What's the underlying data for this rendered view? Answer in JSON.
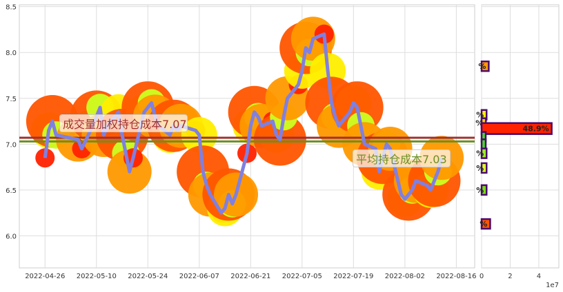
{
  "chart_data": [
    {
      "type": "line",
      "x_ticks": [
        "2022-04-26",
        "2022-05-10",
        "2022-05-24",
        "2022-06-07",
        "2022-06-21",
        "2022-07-05",
        "2022-07-19",
        "2022-08-02",
        "2022-08-16"
      ],
      "y_ticks": [
        "6.0",
        "6.5",
        "7.0",
        "7.5",
        "8.0",
        "8.5"
      ],
      "xlim": [
        "2022-04-19",
        "2022-08-21"
      ],
      "ylim": [
        5.65,
        8.52
      ],
      "grid": true,
      "line_color": "#8080e0",
      "series": [
        {
          "x": [
            "2022-04-26",
            "2022-04-27",
            "2022-04-28",
            "2022-04-29",
            "2022-05-05",
            "2022-05-06",
            "2022-05-09",
            "2022-05-10",
            "2022-05-11",
            "2022-05-12",
            "2022-05-13",
            "2022-05-16",
            "2022-05-17",
            "2022-05-18",
            "2022-05-19",
            "2022-05-20",
            "2022-05-23",
            "2022-05-24",
            "2022-05-25",
            "2022-05-26",
            "2022-05-27",
            "2022-05-30",
            "2022-05-31",
            "2022-06-01",
            "2022-06-02",
            "2022-06-06",
            "2022-06-07",
            "2022-06-08",
            "2022-06-09",
            "2022-06-10",
            "2022-06-13",
            "2022-06-14",
            "2022-06-15",
            "2022-06-16",
            "2022-06-17",
            "2022-06-20",
            "2022-06-21",
            "2022-06-22",
            "2022-06-23",
            "2022-06-24",
            "2022-06-27",
            "2022-06-28",
            "2022-06-29",
            "2022-06-30",
            "2022-07-01",
            "2022-07-04",
            "2022-07-05",
            "2022-07-06",
            "2022-07-07",
            "2022-07-08",
            "2022-07-11",
            "2022-07-12",
            "2022-07-13",
            "2022-07-14",
            "2022-07-15",
            "2022-07-18",
            "2022-07-19",
            "2022-07-20",
            "2022-07-21",
            "2022-07-22",
            "2022-07-25",
            "2022-07-26",
            "2022-07-27",
            "2022-07-28",
            "2022-07-29",
            "2022-08-01",
            "2022-08-02",
            "2022-08-03",
            "2022-08-04",
            "2022-08-05",
            "2022-08-08",
            "2022-08-09",
            "2022-08-10",
            "2022-08-11",
            "2022-08-12"
          ],
          "values": [
            6.85,
            7.15,
            7.25,
            7.1,
            7.05,
            6.95,
            7.2,
            7.3,
            7.4,
            7.1,
            7.2,
            7.35,
            7.1,
            6.9,
            6.7,
            6.85,
            7.35,
            7.4,
            7.45,
            7.3,
            7.2,
            7.1,
            7.2,
            7.15,
            7.2,
            7.15,
            7.1,
            6.7,
            6.55,
            6.45,
            6.25,
            6.3,
            6.45,
            6.35,
            6.45,
            6.9,
            7.2,
            7.35,
            7.3,
            7.2,
            7.25,
            7.1,
            7.05,
            7.3,
            7.5,
            7.65,
            7.8,
            8.05,
            8.0,
            8.15,
            8.2,
            7.8,
            7.45,
            7.3,
            7.2,
            7.35,
            7.45,
            7.4,
            7.2,
            7.0,
            6.95,
            6.7,
            6.85,
            7.0,
            6.95,
            6.45,
            6.4,
            6.45,
            6.5,
            6.6,
            6.55,
            6.5,
            6.6,
            6.7,
            6.85
          ]
        }
      ],
      "hlines": [
        {
          "value": 7.07,
          "color": "#a03030",
          "label": "成交量加权持仓成本7.07"
        },
        {
          "value": 7.03,
          "color": "#6b8e23",
          "label": "平均持仓成本7.03"
        }
      ]
    },
    {
      "type": "bar",
      "orientation": "horizontal",
      "x_ticks": [
        "0",
        "2",
        "4"
      ],
      "x_offset_label": "1e7",
      "xlim": [
        0,
        5.4
      ],
      "bars": [
        {
          "price": 7.85,
          "value": 0.5,
          "color": "#ff9900",
          "label": "%"
        },
        {
          "price": 7.32,
          "value": 0.35,
          "color": "#ffee00",
          "label": "%"
        },
        {
          "price": 7.23,
          "value": 0.3,
          "color": "#ffcc00",
          "label": "%"
        },
        {
          "price": 7.17,
          "value": 4.9,
          "color": "#ff2200",
          "label": "48.9%"
        },
        {
          "price": 7.08,
          "value": 0.25,
          "color": "#44dd22",
          "label": ""
        },
        {
          "price": 7.0,
          "value": 0.2,
          "color": "#44dd22",
          "label": ""
        },
        {
          "price": 6.9,
          "value": 0.35,
          "color": "#99ee22",
          "label": "%"
        },
        {
          "price": 6.74,
          "value": 0.35,
          "color": "#ddff22",
          "label": "%"
        },
        {
          "price": 6.5,
          "value": 0.35,
          "color": "#77dd11",
          "label": "%"
        },
        {
          "price": 6.13,
          "value": 0.6,
          "color": "#ff5500",
          "label": "%"
        }
      ]
    }
  ]
}
